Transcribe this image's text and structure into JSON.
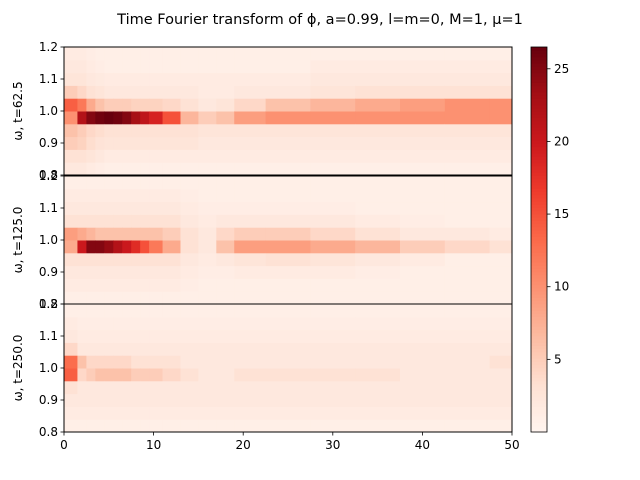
{
  "title": "Time Fourier transform of ϕ,  a=0.99, l=m=0, M=1, μ=1",
  "chart_data": {
    "type": "heatmap",
    "title": "Time Fourier transform of ϕ,  a=0.99, l=m=0, M=1, μ=1",
    "colormap": "Reds",
    "colorbar": {
      "min": 0,
      "max": 26.5,
      "ticks": [
        5,
        10,
        15,
        20,
        25
      ]
    },
    "xlabel": "",
    "xlim": [
      0,
      50
    ],
    "xticks": [
      0,
      10,
      20,
      30,
      40,
      50
    ],
    "y_bins": [
      0.82,
      0.86,
      0.9,
      0.94,
      0.98,
      1.02,
      1.06,
      1.1,
      1.14,
      1.18
    ],
    "panels": [
      {
        "ylabel": "ω, t=62.5",
        "ylim": [
          0.8,
          1.2
        ],
        "yticks": [
          0.8,
          0.9,
          1.0,
          1.1,
          1.2
        ],
        "x": [
          1,
          2,
          3,
          4,
          5,
          6,
          7,
          8,
          9,
          10,
          12,
          14,
          16,
          18,
          20,
          25,
          30,
          35,
          40,
          45,
          50
        ],
        "values": [
          [
            2,
            2,
            1.5,
            1.2,
            1,
            1,
            1,
            1,
            1,
            1,
            1,
            1,
            1,
            1,
            1,
            1,
            1,
            1,
            1,
            1,
            1
          ],
          [
            3,
            3,
            2.5,
            2,
            1.5,
            1.5,
            1.5,
            1.5,
            1.5,
            1.5,
            1.5,
            1.5,
            1.5,
            1.5,
            1.5,
            1.5,
            1.5,
            1.5,
            1.5,
            1.5,
            1.5
          ],
          [
            5,
            4.5,
            3.5,
            2.8,
            2.5,
            2.5,
            2.5,
            2.5,
            2.5,
            2.5,
            2.5,
            2.5,
            2,
            2,
            2,
            2,
            2,
            2,
            2,
            2,
            2
          ],
          [
            6,
            5,
            4,
            3.5,
            3,
            3,
            3,
            3,
            3,
            3,
            3,
            3,
            2.5,
            2.5,
            2.5,
            2.5,
            2.5,
            2.5,
            2.5,
            2.5,
            2.5
          ],
          [
            10,
            22,
            25,
            26,
            26.5,
            26,
            25,
            23,
            21,
            19,
            15,
            7,
            5,
            6,
            9,
            10,
            10,
            10,
            10,
            10,
            10
          ],
          [
            14,
            12,
            8,
            6,
            5,
            5,
            5,
            4.5,
            4.5,
            4.5,
            4,
            3,
            2,
            2.5,
            4,
            6,
            7,
            8,
            9,
            10,
            10
          ],
          [
            5,
            4,
            3,
            2.5,
            2,
            2,
            2,
            2,
            2,
            2,
            2,
            2,
            1.5,
            1.5,
            2,
            2,
            2.5,
            3,
            3,
            3,
            3
          ],
          [
            2.5,
            2.5,
            2,
            1.8,
            1.5,
            1.5,
            1.5,
            1.5,
            1.5,
            1.5,
            1.5,
            1.5,
            1.5,
            1.5,
            1.5,
            1.5,
            2,
            2,
            2,
            2,
            2
          ],
          [
            2,
            2,
            1.5,
            1.2,
            1,
            1,
            1,
            1,
            1,
            1,
            1,
            1,
            1,
            1,
            1,
            1,
            1.5,
            1.5,
            1.5,
            1.5,
            1.5
          ],
          [
            1.5,
            1.5,
            1.2,
            1,
            1,
            1,
            1,
            1,
            1,
            1,
            1,
            1,
            1,
            1,
            1,
            1,
            1,
            1,
            1,
            1,
            1
          ]
        ]
      },
      {
        "ylabel": "ω, t=125.0",
        "ylim": [
          0.8,
          1.2
        ],
        "yticks": [
          0.8,
          0.9,
          1.0,
          1.1,
          1.2
        ],
        "x": [
          1,
          2,
          3,
          4,
          5,
          6,
          7,
          8,
          9,
          10,
          12,
          14,
          16,
          18,
          20,
          25,
          30,
          35,
          40,
          45,
          50
        ],
        "values": [
          [
            1,
            1,
            1,
            1,
            1,
            1,
            1,
            1,
            1,
            1,
            1,
            1,
            1,
            1,
            1,
            1,
            1,
            1,
            1,
            1,
            1
          ],
          [
            1.5,
            1.5,
            1.5,
            1.5,
            1.5,
            1.5,
            1.5,
            1.5,
            1.5,
            1.5,
            1.5,
            1.2,
            1,
            1,
            1,
            1,
            1,
            1,
            1,
            1,
            1
          ],
          [
            2,
            2,
            2,
            2,
            2,
            2,
            2,
            2,
            2,
            2,
            2,
            1.5,
            1.2,
            1.2,
            1.5,
            1.5,
            1.5,
            1.2,
            1,
            1,
            1
          ],
          [
            3,
            3,
            3,
            3,
            3,
            3,
            3,
            3,
            3,
            3,
            3,
            2,
            1.5,
            2,
            2.5,
            3,
            2.5,
            2,
            1.5,
            1,
            1
          ],
          [
            8,
            20,
            25,
            25,
            24,
            22,
            20,
            18,
            15,
            12,
            8,
            3,
            2,
            6,
            9,
            9,
            8,
            7,
            5,
            4,
            3
          ],
          [
            9,
            8,
            7,
            6,
            6,
            6,
            6,
            6,
            6,
            6,
            5,
            3,
            2,
            4,
            5,
            5,
            4,
            3,
            2,
            2,
            1.5
          ],
          [
            3,
            3,
            3,
            3,
            3,
            3,
            3,
            3,
            3,
            3,
            3,
            2,
            1.5,
            2,
            2,
            2,
            2,
            1.5,
            1.2,
            1,
            1
          ],
          [
            2,
            2,
            2,
            2,
            2,
            2,
            2,
            2,
            2,
            2,
            2,
            1.5,
            1.2,
            1.2,
            1.2,
            1.2,
            1.2,
            1,
            1,
            1,
            1
          ],
          [
            1.5,
            1.5,
            1.5,
            1.5,
            1.5,
            1.5,
            1.5,
            1.5,
            1.5,
            1.5,
            1.5,
            1.2,
            1,
            1,
            1,
            1,
            1,
            1,
            1,
            1,
            1
          ],
          [
            1,
            1,
            1,
            1,
            1,
            1,
            1,
            1,
            1,
            1,
            1,
            1,
            1,
            1,
            1,
            1,
            1,
            1,
            1,
            1,
            1
          ]
        ]
      },
      {
        "ylabel": "ω, t=250.0",
        "ylim": [
          0.8,
          1.2
        ],
        "yticks": [
          0.8,
          0.9,
          1.0,
          1.1,
          1.2
        ],
        "x": [
          1,
          2,
          3,
          4,
          5,
          6,
          7,
          8,
          9,
          10,
          12,
          14,
          16,
          18,
          20,
          25,
          30,
          35,
          40,
          45,
          50
        ],
        "values": [
          [
            1,
            1,
            1,
            1,
            1,
            1,
            1,
            1,
            1,
            1,
            1,
            1,
            1,
            1,
            1,
            1,
            1,
            1,
            1,
            1,
            1
          ],
          [
            1.5,
            1.5,
            1.5,
            1.5,
            1.5,
            1.5,
            1.5,
            1.5,
            1.5,
            1.5,
            1.5,
            1.5,
            1.5,
            1.5,
            1.5,
            1.5,
            1.5,
            1.5,
            1.5,
            1.5,
            1.5
          ],
          [
            2,
            2,
            2,
            2,
            2,
            2,
            2,
            2,
            2,
            2,
            2,
            2,
            2,
            2,
            2,
            2,
            2,
            2,
            2,
            2,
            2
          ],
          [
            3,
            2,
            2,
            2,
            2,
            2,
            2,
            2,
            2,
            2,
            2,
            2,
            2,
            2,
            2,
            2,
            2,
            2,
            2,
            2,
            2
          ],
          [
            14,
            4,
            5,
            6,
            6,
            6,
            6,
            5,
            5,
            5,
            4,
            3,
            2,
            2,
            3,
            3,
            3,
            3,
            2,
            2,
            2
          ],
          [
            13,
            6,
            4,
            4,
            4,
            4,
            4,
            3,
            3,
            3,
            3,
            2,
            2,
            2,
            2,
            2,
            2,
            2,
            2,
            2,
            3
          ],
          [
            4,
            2,
            2,
            2,
            2,
            2,
            2,
            2,
            2,
            2,
            2,
            2,
            2,
            2,
            2,
            2,
            2,
            2,
            2,
            2,
            2
          ],
          [
            2,
            1.5,
            1.5,
            1.5,
            1.5,
            1.5,
            1.5,
            1.5,
            1.5,
            1.5,
            1.5,
            1.5,
            1.5,
            1.5,
            1.5,
            1.5,
            1.5,
            1.5,
            1.5,
            1.5,
            1.5
          ],
          [
            1.5,
            1.2,
            1.2,
            1.2,
            1.2,
            1.2,
            1.2,
            1.2,
            1.2,
            1.2,
            1.2,
            1.2,
            1.2,
            1.2,
            1.2,
            1.2,
            1.2,
            1.2,
            1.2,
            1.2,
            1.2
          ],
          [
            1,
            1,
            1,
            1,
            1,
            1,
            1,
            1,
            1,
            1,
            1,
            1,
            1,
            1,
            1,
            1,
            1,
            1,
            1,
            1,
            1
          ]
        ]
      }
    ]
  }
}
